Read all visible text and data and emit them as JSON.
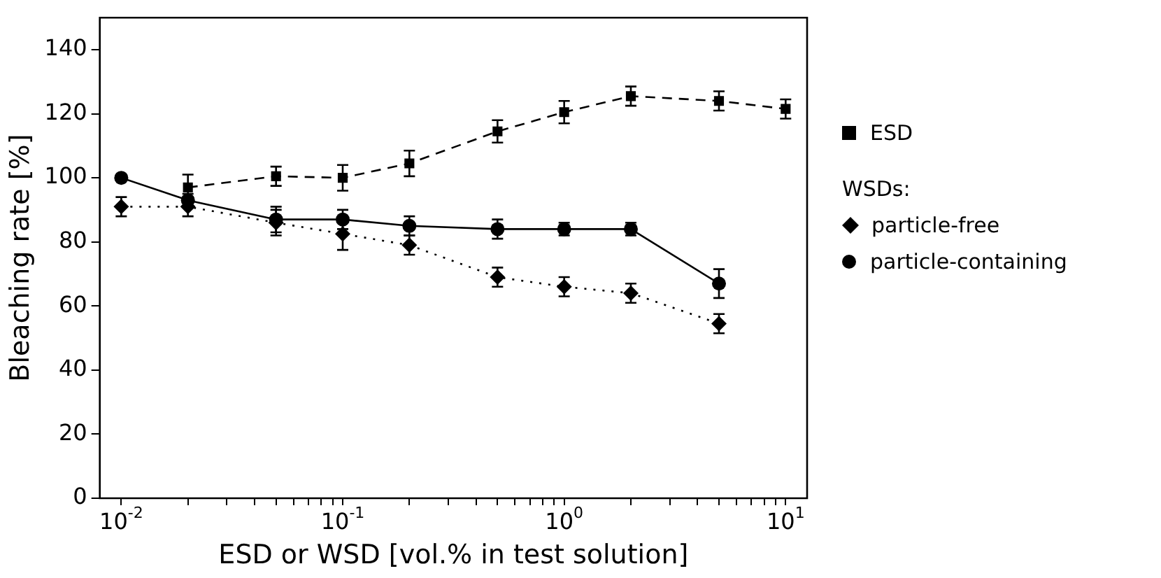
{
  "chart_data": {
    "type": "line",
    "xlabel": "ESD or WSD [vol.% in test solution]",
    "ylabel": "Bleaching rate [%]",
    "log": "x",
    "xlim": [
      0.008,
      12.5
    ],
    "ylim": [
      0,
      150
    ],
    "yticks": [
      0,
      20,
      40,
      60,
      80,
      100,
      120,
      140
    ],
    "xticks": [
      {
        "value": 0.01,
        "label": "10$^{-2}$"
      },
      {
        "value": 0.02,
        "label": null
      },
      {
        "value": 0.03,
        "label": null
      },
      {
        "value": 0.04,
        "label": null
      },
      {
        "value": 0.05,
        "label": null
      },
      {
        "value": 0.06,
        "label": null
      },
      {
        "value": 0.07,
        "label": null
      },
      {
        "value": 0.08,
        "label": null
      },
      {
        "value": 0.09,
        "label": null
      },
      {
        "value": 0.1,
        "label": "10$^{-1}$"
      },
      {
        "value": 0.2,
        "label": null
      },
      {
        "value": 0.3,
        "label": null
      },
      {
        "value": 0.4,
        "label": null
      },
      {
        "value": 0.5,
        "label": null
      },
      {
        "value": 0.6,
        "label": null
      },
      {
        "value": 0.7,
        "label": null
      },
      {
        "value": 0.8,
        "label": null
      },
      {
        "value": 0.9,
        "label": null
      },
      {
        "value": 1,
        "label": "10$^{0}$"
      },
      {
        "value": 2,
        "label": null
      },
      {
        "value": 3,
        "label": null
      },
      {
        "value": 4,
        "label": null
      },
      {
        "value": 5,
        "label": null
      },
      {
        "value": 6,
        "label": null
      },
      {
        "value": 7,
        "label": null
      },
      {
        "value": 8,
        "label": null
      },
      {
        "value": 9,
        "label": null
      },
      {
        "value": 10,
        "label": "10$^{1}$"
      }
    ],
    "grid": false,
    "legend": "right",
    "legend_title": "WSDs:",
    "series": [
      {
        "name": "ESD",
        "color": "#000000",
        "marker": "square",
        "line_style": "dashed",
        "x": [
          0.02,
          0.05,
          0.1,
          0.2,
          0.5,
          1,
          2,
          5,
          10
        ],
        "values": [
          97,
          100.5,
          100,
          104.5,
          114.5,
          120.5,
          125.5,
          124,
          121.5
        ],
        "errors": [
          4,
          3,
          4,
          4,
          3.5,
          3.5,
          3,
          3,
          3
        ]
      },
      {
        "name": "particle-free",
        "color": "#000000",
        "marker": "diamond",
        "line_style": "dotted",
        "x": [
          0.01,
          0.02,
          0.05,
          0.1,
          0.2,
          0.5,
          1,
          2,
          5
        ],
        "values": [
          91,
          91,
          86,
          82.5,
          79,
          69,
          66,
          64,
          54.5
        ],
        "errors": [
          3,
          3,
          4,
          5,
          3,
          3,
          3,
          3,
          3
        ]
      },
      {
        "name": "particle-containing",
        "color": "#000000",
        "marker": "circle",
        "line_style": "solid",
        "x": [
          0.01,
          0.02,
          0.05,
          0.1,
          0.2,
          0.5,
          1,
          2,
          5
        ],
        "values": [
          100,
          93,
          87,
          87,
          85,
          84,
          84,
          84,
          67
        ],
        "errors": [
          null,
          2,
          4,
          3,
          3,
          3,
          2,
          2,
          4.5
        ]
      }
    ]
  }
}
